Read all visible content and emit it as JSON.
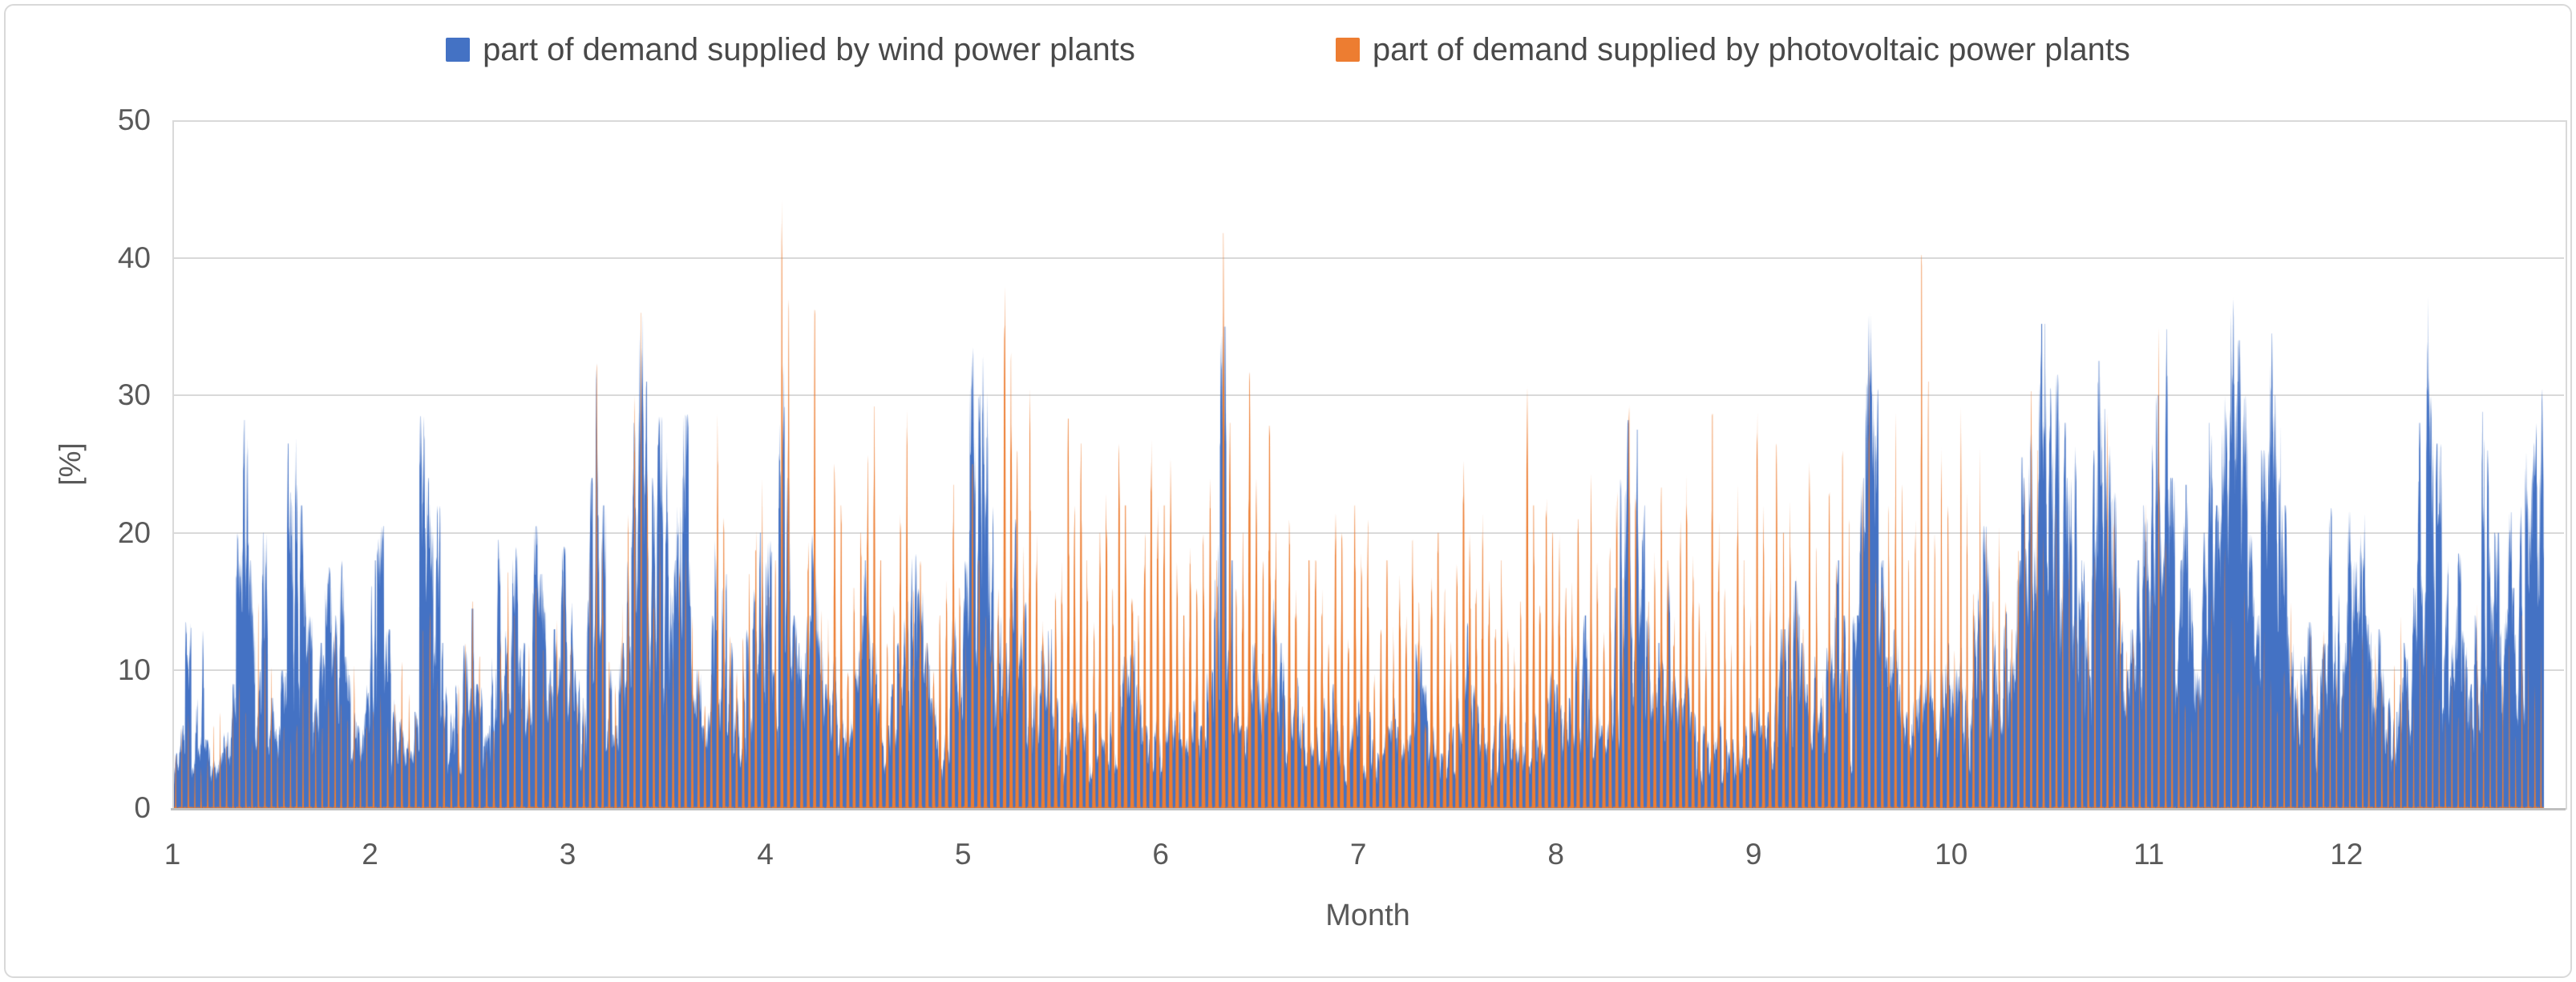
{
  "page": {
    "background_color": "#FFFFFF",
    "frame_border_color": "#D9D9D9"
  },
  "chart_data": {
    "type": "area",
    "title": "",
    "unit": "% of demand",
    "legend_position": "top",
    "x_axis": {
      "title": "Month",
      "tick_labels": [
        "1",
        "2",
        "3",
        "4",
        "5",
        "6",
        "7",
        "8",
        "9",
        "10",
        "11",
        "12"
      ],
      "range_months": [
        1,
        13.1
      ]
    },
    "y_axis": {
      "title": "[%]",
      "tick_labels": [
        "0",
        "10",
        "20",
        "30",
        "40",
        "50"
      ],
      "range": [
        0,
        50
      ],
      "gridlines": true
    },
    "colors": {
      "wind": "#4472C4",
      "pv": "#ED7D31",
      "text": "#595959",
      "gridline": "#D9D9D9",
      "axis_line": "#BFBFBF"
    },
    "month_day_counts": [
      31,
      28,
      31,
      30,
      31,
      30,
      31,
      31,
      30,
      31,
      30,
      31
    ],
    "series": [
      {
        "name": "part of demand supplied by wind power plants",
        "color": "#4472C4",
        "kind": "wind",
        "daily_peak_values": [
          4,
          6,
          13.5,
          8,
          13,
          5,
          3.5,
          4,
          5.5,
          9,
          20,
          28.2,
          18,
          10,
          20,
          8,
          6,
          10,
          26.5,
          27,
          22,
          14,
          8,
          12,
          17.5,
          14,
          18,
          11,
          7,
          6,
          9,
          18,
          20.5,
          13,
          8,
          6.5,
          5,
          7,
          28.5,
          24,
          22,
          12,
          7,
          9,
          12,
          14.5,
          9,
          6,
          11,
          19.5,
          13,
          19,
          12,
          8,
          20.5,
          17,
          10,
          13,
          19,
          15,
          10,
          8,
          24,
          32.5,
          22,
          10,
          6,
          12,
          18,
          28,
          36,
          31,
          24,
          28.5,
          26,
          18,
          22,
          28.6,
          18,
          10,
          6,
          14,
          19.5,
          17,
          12,
          8,
          10,
          13,
          16,
          20,
          19.5,
          10,
          32.5,
          24,
          14,
          12,
          14,
          20,
          13,
          9,
          11,
          8,
          6,
          10,
          14,
          18,
          12,
          8,
          6,
          9,
          12,
          15,
          18.5,
          16,
          12,
          8,
          5,
          7,
          14,
          10,
          18,
          33.5,
          30,
          33,
          22,
          14,
          12,
          16,
          21,
          15,
          13,
          9,
          12,
          13,
          8,
          5,
          6,
          8,
          7,
          6,
          8,
          6,
          5,
          7,
          9,
          11,
          12.5,
          9,
          6,
          5,
          7,
          6,
          8,
          7,
          5,
          6,
          8,
          6,
          10,
          20,
          35,
          18,
          8,
          6,
          9,
          12,
          8,
          10,
          15.5,
          12,
          8,
          9.5,
          7,
          5,
          6,
          8,
          7,
          9,
          6,
          5,
          7,
          8,
          7,
          5,
          4,
          6,
          8,
          6,
          5,
          7,
          12,
          9,
          6,
          5,
          4,
          6,
          8,
          10,
          13.5,
          9,
          7,
          5,
          6,
          8,
          7,
          5,
          6,
          9,
          7,
          5,
          8,
          10,
          9,
          7,
          8,
          12,
          14,
          10,
          7,
          6,
          9,
          16,
          24,
          28.2,
          27.5,
          22,
          14,
          9,
          12,
          17.5,
          10,
          8,
          11,
          7,
          5,
          6,
          6,
          6.5,
          5,
          5,
          5,
          6,
          7,
          8,
          6,
          7,
          10,
          13,
          14,
          16.5,
          12,
          9,
          11,
          8,
          12,
          18,
          14,
          10,
          14,
          24,
          36,
          30.5,
          18,
          11,
          13,
          9,
          7,
          8,
          9,
          10,
          8,
          10,
          12,
          10,
          12,
          9,
          14,
          16,
          20.5,
          13,
          10,
          14.3,
          11,
          18,
          25.5,
          28,
          31,
          35.2,
          30.5,
          31.5,
          28,
          24,
          26.5,
          18,
          14,
          26,
          32.5,
          29,
          23,
          16,
          10,
          13,
          18,
          22,
          26.5,
          30,
          34.8,
          24,
          18,
          23.5,
          16,
          10,
          20,
          28,
          22,
          30,
          37.7,
          34,
          30,
          20,
          14,
          26,
          34.5,
          30,
          22,
          14,
          9,
          11,
          13.5,
          8,
          12,
          21.8,
          16,
          12,
          21.7,
          18,
          21.5,
          14,
          10,
          13,
          8,
          7,
          9.5,
          12,
          16,
          28,
          37.7,
          30,
          26.5,
          18,
          12,
          18.5,
          13,
          9,
          14,
          28.8,
          26,
          20,
          14,
          21.5,
          16,
          22,
          26,
          28,
          30.5
        ]
      },
      {
        "name": "part of demand supplied by photovoltaic power plants",
        "color": "#ED7D31",
        "kind": "pv",
        "daily_peak_values": [
          4,
          6,
          8,
          5,
          3,
          4,
          6,
          7,
          5,
          8,
          10,
          7,
          5,
          15,
          13,
          11,
          8,
          6,
          5,
          7,
          9,
          12,
          8,
          6,
          10,
          13,
          9,
          7,
          11,
          8,
          6,
          7,
          9,
          6,
          8,
          11,
          9,
          7,
          13,
          15,
          10,
          8,
          6,
          9,
          12,
          15,
          11,
          8,
          10,
          13,
          19,
          14,
          9,
          12,
          16,
          12,
          9,
          14,
          17,
          12,
          9,
          14,
          18,
          32.5,
          20,
          12,
          9,
          15,
          22,
          30,
          36,
          26,
          18,
          22,
          16,
          12,
          19,
          19,
          14,
          10,
          8,
          16,
          28.7,
          22,
          14,
          10,
          13,
          17,
          21,
          24,
          26,
          18,
          44.2,
          37,
          22,
          16,
          20,
          36.2,
          24,
          14,
          29,
          22,
          12,
          16,
          20,
          28,
          29.2,
          18,
          12,
          16,
          22,
          29,
          26,
          18,
          12,
          10,
          14,
          18,
          23.5,
          16,
          20,
          25,
          18,
          14,
          22,
          16,
          38,
          33.2,
          26,
          33,
          30.5,
          20,
          14,
          12,
          16,
          18,
          28.3,
          22,
          26.5,
          18,
          14,
          20,
          24,
          16,
          26.5,
          22,
          18,
          14,
          20,
          26.8,
          22,
          22,
          25.5,
          18,
          14,
          19,
          16,
          20,
          24,
          18,
          41.8,
          28,
          16,
          20,
          31.7,
          24,
          18,
          27.8,
          20,
          14,
          21,
          16,
          12,
          18,
          18,
          16,
          12,
          21.5,
          20,
          24,
          22,
          19,
          21,
          16,
          13,
          18,
          21.2,
          17,
          14,
          19.8,
          15,
          12,
          17,
          20,
          16,
          13,
          18,
          25.3,
          20,
          16,
          21.5,
          17,
          13,
          18,
          22.5,
          19,
          15,
          30.7,
          22,
          17,
          24.5,
          20,
          20,
          16,
          29,
          21,
          16,
          24.3,
          18,
          14,
          19,
          23,
          28.3,
          29.3,
          24,
          19,
          15,
          20,
          23.3,
          18,
          14,
          21,
          25.5,
          19,
          15,
          22,
          28.7,
          21,
          16,
          12,
          24,
          18,
          14,
          28.8,
          22,
          17,
          26.5,
          20,
          22.3,
          17,
          13,
          25.2,
          19,
          15,
          23,
          18,
          26,
          21,
          17,
          24,
          33.5,
          20,
          16,
          22,
          28.8,
          24,
          18,
          22,
          40.2,
          31,
          20,
          26.3,
          22,
          22,
          29.2,
          23,
          18,
          26.3,
          20,
          15,
          21.8,
          17,
          13,
          19,
          24,
          30.3,
          26,
          20,
          16,
          22,
          18,
          20.7,
          16,
          12,
          15,
          18.5,
          16,
          28.7,
          22,
          16,
          12,
          15,
          19,
          23,
          18,
          35,
          20,
          14,
          10,
          15,
          12,
          9,
          13,
          16,
          12,
          19,
          14,
          10,
          16,
          12,
          9,
          13,
          10,
          8,
          12,
          15,
          11,
          8,
          13,
          10,
          13,
          9,
          12,
          10,
          14,
          10,
          12.7,
          9,
          13.8,
          10,
          8,
          11,
          14,
          10,
          8,
          12,
          15,
          11,
          8,
          13.5,
          10,
          8,
          12,
          9,
          15,
          11,
          8,
          13,
          10,
          12,
          9,
          14,
          11,
          9,
          12
        ]
      }
    ]
  }
}
